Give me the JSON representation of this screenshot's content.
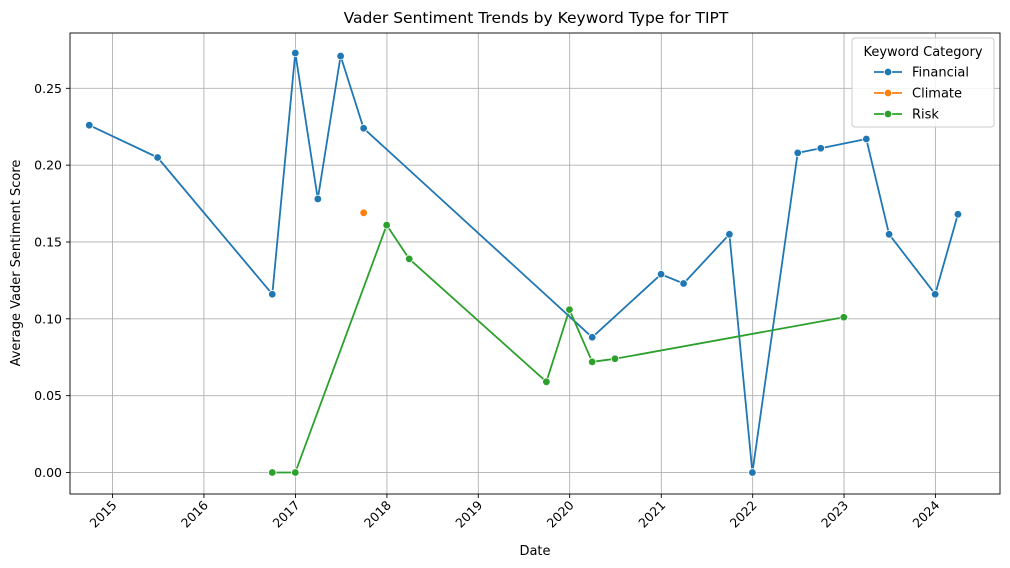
{
  "chart_data": {
    "type": "line",
    "title": "Vader Sentiment Trends by Keyword Type for TIPT",
    "xlabel": "Date",
    "ylabel": "Average Vader Sentiment Score",
    "xlim": [
      "2014-07-15",
      "2024-09-15"
    ],
    "ylim": [
      -0.014,
      0.286
    ],
    "x_ticks": [
      "2015-01-01",
      "2016-01-01",
      "2017-01-01",
      "2018-01-01",
      "2019-01-01",
      "2020-01-01",
      "2021-01-01",
      "2022-01-01",
      "2023-01-01",
      "2024-01-01"
    ],
    "x_tick_labels": [
      "2015",
      "2016",
      "2017",
      "2018",
      "2019",
      "2020",
      "2021",
      "2022",
      "2023",
      "2024"
    ],
    "y_ticks": [
      0.0,
      0.05,
      0.1,
      0.15,
      0.2,
      0.25
    ],
    "y_tick_labels": [
      "0.00",
      "0.05",
      "0.10",
      "0.15",
      "0.20",
      "0.25"
    ],
    "grid": true,
    "legend": {
      "title": "Keyword Category",
      "position": "top-right"
    },
    "series": [
      {
        "name": "Financial",
        "color": "#1f77b4",
        "points": [
          [
            "2014-09-30",
            0.226
          ],
          [
            "2015-06-30",
            0.205
          ],
          [
            "2016-09-30",
            0.116
          ],
          [
            "2016-12-31",
            0.273
          ],
          [
            "2017-03-31",
            0.178
          ],
          [
            "2017-06-30",
            0.271
          ],
          [
            "2017-09-30",
            0.224
          ],
          [
            "2020-03-31",
            0.088
          ],
          [
            "2020-12-31",
            0.129
          ],
          [
            "2021-03-31",
            0.123
          ],
          [
            "2021-09-30",
            0.155
          ],
          [
            "2021-12-31",
            0.0
          ],
          [
            "2022-06-30",
            0.208
          ],
          [
            "2022-09-30",
            0.211
          ],
          [
            "2023-03-31",
            0.217
          ],
          [
            "2023-06-30",
            0.155
          ],
          [
            "2023-12-31",
            0.116
          ],
          [
            "2024-03-31",
            0.168
          ]
        ]
      },
      {
        "name": "Climate",
        "color": "#ff7f0e",
        "points": [
          [
            "2017-09-30",
            0.169
          ]
        ]
      },
      {
        "name": "Risk",
        "color": "#2ca02c",
        "points": [
          [
            "2016-09-30",
            0.0
          ],
          [
            "2016-12-31",
            0.0
          ],
          [
            "2017-12-31",
            0.161
          ],
          [
            "2018-03-31",
            0.139
          ],
          [
            "2019-09-30",
            0.059
          ],
          [
            "2019-12-31",
            0.106
          ],
          [
            "2020-03-31",
            0.072
          ],
          [
            "2020-06-30",
            0.074
          ],
          [
            "2022-12-31",
            0.101
          ]
        ]
      }
    ]
  }
}
